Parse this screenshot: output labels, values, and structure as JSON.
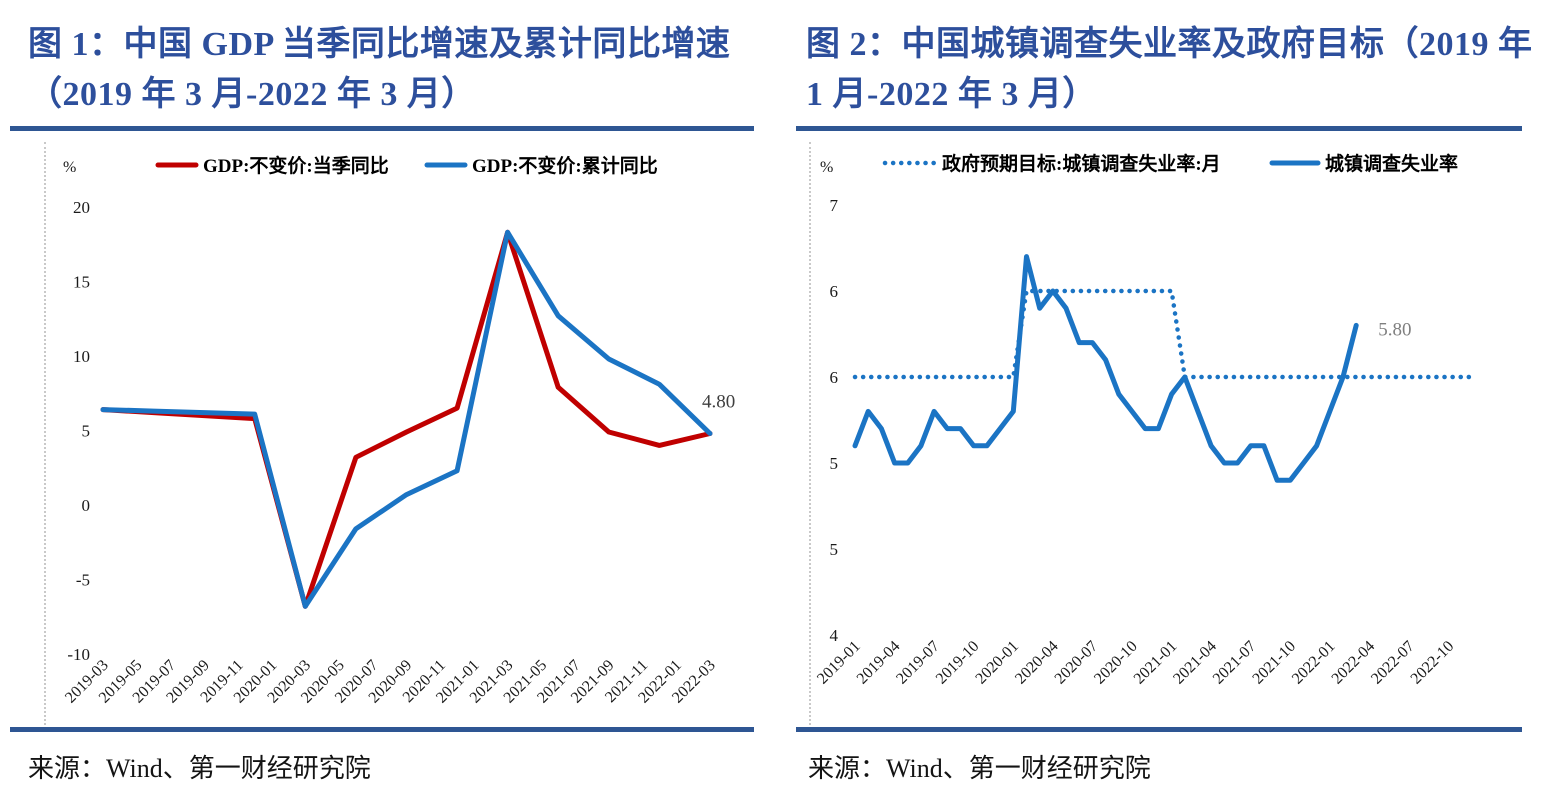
{
  "columns": [
    {
      "title_line1": "图 1：中国 GDP 当季同比增速及累计同比增速",
      "title_line2": "（2019 年 3 月-2022 年 3 月）",
      "source": "来源：Wind、第一财经研究院"
    },
    {
      "title_line1": "图 2：中国城镇调查失业率及政府目标（2019 年",
      "title_line2": "1 月-2022 年 3 月）",
      "source": "来源：Wind、第一财经研究院"
    }
  ],
  "colors": {
    "title_blue": "#2D4F9C",
    "rule_blue": "#2E5693",
    "line_red": "#C00000",
    "line_blue": "#1B74C4",
    "tick_text": "#1a1a1a",
    "legend_text": "#000000"
  },
  "chart_data": [
    {
      "type": "line",
      "title": "中国 GDP 当季同比增速及累计同比增速（2019 年 3 月-2022 年 3 月）",
      "unit": "%",
      "grid": false,
      "legend_position": "top",
      "ylim": [
        -10,
        20
      ],
      "y_ticks": {
        "values": [
          20,
          15,
          10,
          5,
          0,
          -5,
          -10
        ],
        "labels": [
          "20",
          "15",
          "10",
          "5",
          "0",
          "-5",
          "-10"
        ]
      },
      "x_range_months": [
        0,
        36
      ],
      "x_ticks": {
        "months": [
          0,
          2,
          4,
          6,
          8,
          10,
          12,
          14,
          16,
          18,
          20,
          22,
          24,
          26,
          28,
          30,
          32,
          34,
          36
        ],
        "labels": [
          "2019-03",
          "2019-05",
          "2019-07",
          "2019-09",
          "2019-11",
          "2020-01",
          "2020-03",
          "2020-05",
          "2020-07",
          "2020-09",
          "2020-11",
          "2021-01",
          "2021-03",
          "2021-05",
          "2021-07",
          "2021-09",
          "2021-11",
          "2022-01",
          "2022-03"
        ]
      },
      "series": [
        {
          "name": "GDP:不变价:当季同比",
          "style": "solid",
          "color_key": "line_red",
          "months": [
            0,
            3,
            6,
            9,
            12,
            15,
            18,
            21,
            24,
            27,
            30,
            33,
            36
          ],
          "values": [
            6.4,
            6.2,
            6.0,
            5.8,
            -6.8,
            3.2,
            4.9,
            6.5,
            18.3,
            7.9,
            4.9,
            4.0,
            4.8
          ]
        },
        {
          "name": "GDP:不变价:累计同比",
          "style": "solid",
          "color_key": "line_blue",
          "months": [
            0,
            3,
            6,
            9,
            12,
            15,
            18,
            21,
            24,
            27,
            30,
            33,
            36
          ],
          "values": [
            6.4,
            6.3,
            6.2,
            6.1,
            -6.8,
            -1.6,
            0.7,
            2.3,
            18.3,
            12.7,
            9.8,
            8.1,
            4.8
          ]
        }
      ],
      "annotation": {
        "text": "4.80",
        "month": 36,
        "value": 4.8,
        "color": "#3f3f3f"
      }
    },
    {
      "type": "line",
      "title": "中国城镇调查失业率及政府目标（2019 年 1 月-2022 年 3 月）",
      "unit": "%",
      "grid": false,
      "legend_position": "top",
      "ylim": [
        4.0,
        6.5
      ],
      "y_ticks": {
        "values": [
          6.5,
          6.0,
          5.5,
          5.0,
          4.5,
          4.0
        ],
        "labels": [
          "7",
          "6",
          "6",
          "5",
          "5",
          "4"
        ]
      },
      "x_range_months": [
        0,
        47
      ],
      "x_ticks": {
        "months": [
          0,
          3,
          6,
          9,
          12,
          15,
          18,
          21,
          24,
          27,
          30,
          33,
          36,
          39,
          42,
          45
        ],
        "labels": [
          "2019-01",
          "2019-04",
          "2019-07",
          "2019-10",
          "2020-01",
          "2020-04",
          "2020-07",
          "2020-10",
          "2021-01",
          "2021-04",
          "2021-07",
          "2021-10",
          "2022-01",
          "2022-04",
          "2022-07",
          "2022-10"
        ]
      },
      "series": [
        {
          "name": "政府预期目标:城镇调查失业率:月",
          "style": "dotted",
          "color_key": "line_blue",
          "months": [
            0,
            12,
            13,
            24,
            25,
            47
          ],
          "values": [
            5.5,
            5.5,
            6.0,
            6.0,
            5.5,
            5.5
          ]
        },
        {
          "name": "城镇调查失业率",
          "style": "solid",
          "color_key": "line_blue",
          "months": [
            0,
            1,
            2,
            3,
            4,
            5,
            6,
            7,
            8,
            9,
            10,
            11,
            12,
            13,
            14,
            15,
            16,
            17,
            18,
            19,
            20,
            21,
            22,
            23,
            24,
            25,
            26,
            27,
            28,
            29,
            30,
            31,
            32,
            33,
            34,
            35,
            36,
            37,
            38
          ],
          "values": [
            5.1,
            5.3,
            5.2,
            5.0,
            5.0,
            5.1,
            5.3,
            5.2,
            5.2,
            5.1,
            5.1,
            5.2,
            5.3,
            6.2,
            5.9,
            6.0,
            5.9,
            5.7,
            5.7,
            5.6,
            5.4,
            5.3,
            5.2,
            5.2,
            5.4,
            5.5,
            5.3,
            5.1,
            5.0,
            5.0,
            5.1,
            5.1,
            4.9,
            4.9,
            5.0,
            5.1,
            5.3,
            5.5,
            5.8
          ]
        }
      ],
      "annotation": {
        "text": "5.80",
        "month": 38,
        "value": 5.8,
        "color": "#7f7f7f"
      }
    }
  ]
}
